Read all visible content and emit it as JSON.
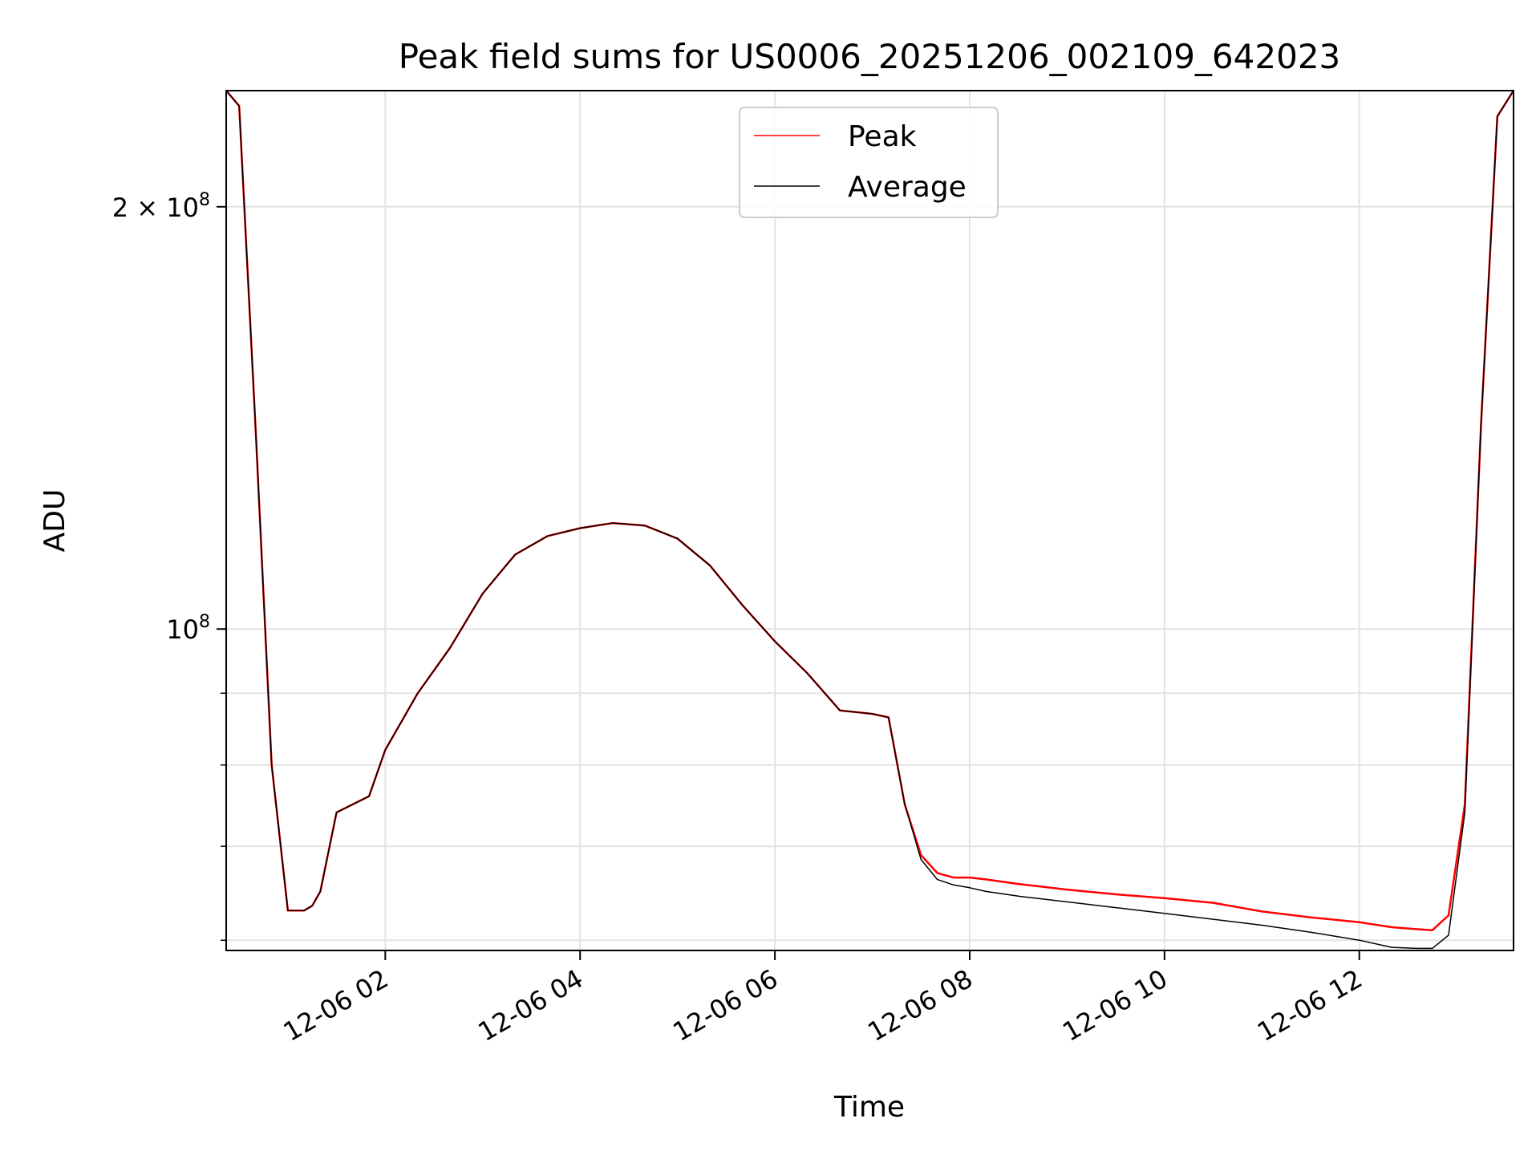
{
  "chart_data": {
    "type": "line",
    "title": "Peak field sums for US0006_20251206_002109_642023",
    "xlabel": "Time",
    "ylabel": "ADU",
    "y_scale": "log",
    "grid": true,
    "legend_placement": "upper-center",
    "xlim": [
      "2025-12-06 00:22",
      "2025-12-06 13:35"
    ],
    "ylim": [
      59000000,
      242000000
    ],
    "x_ticks": [
      "2025-12-06 02:00",
      "2025-12-06 04:00",
      "2025-12-06 06:00",
      "2025-12-06 08:00",
      "2025-12-06 10:00",
      "2025-12-06 12:00"
    ],
    "x_tick_labels": [
      "12-06 02",
      "12-06 04",
      "12-06 06",
      "12-06 08",
      "12-06 10",
      "12-06 12"
    ],
    "y_major_ticks": [
      100000000,
      200000000
    ],
    "y_major_tick_labels": [
      {
        "base": "10",
        "exp": "8"
      },
      {
        "mant": "2",
        "base": "10",
        "exp": "8"
      }
    ],
    "y_minor_ticks": [
      60000000,
      70000000,
      80000000,
      90000000
    ],
    "series": [
      {
        "name": "Peak",
        "color": "#ff0000",
        "x": [
          "2025-12-06 00:22",
          "2025-12-06 00:30",
          "2025-12-06 00:40",
          "2025-12-06 00:50",
          "2025-12-06 01:00",
          "2025-12-06 01:10",
          "2025-12-06 01:15",
          "2025-12-06 01:20",
          "2025-12-06 01:30",
          "2025-12-06 01:40",
          "2025-12-06 01:50",
          "2025-12-06 02:00",
          "2025-12-06 02:20",
          "2025-12-06 02:40",
          "2025-12-06 03:00",
          "2025-12-06 03:20",
          "2025-12-06 03:40",
          "2025-12-06 04:00",
          "2025-12-06 04:20",
          "2025-12-06 04:40",
          "2025-12-06 05:00",
          "2025-12-06 05:20",
          "2025-12-06 05:40",
          "2025-12-06 06:00",
          "2025-12-06 06:20",
          "2025-12-06 06:40",
          "2025-12-06 07:00",
          "2025-12-06 07:10",
          "2025-12-06 07:20",
          "2025-12-06 07:30",
          "2025-12-06 07:40",
          "2025-12-06 07:50",
          "2025-12-06 08:00",
          "2025-12-06 08:10",
          "2025-12-06 08:30",
          "2025-12-06 09:00",
          "2025-12-06 09:30",
          "2025-12-06 10:00",
          "2025-12-06 10:30",
          "2025-12-06 11:00",
          "2025-12-06 11:30",
          "2025-12-06 12:00",
          "2025-12-06 12:20",
          "2025-12-06 12:35",
          "2025-12-06 12:45",
          "2025-12-06 12:55",
          "2025-12-06 13:05",
          "2025-12-06 13:15",
          "2025-12-06 13:25",
          "2025-12-06 13:35"
        ],
        "y": [
          242000000,
          236000000,
          140000000,
          80000000,
          63000000,
          63000000,
          63500000,
          65000000,
          74000000,
          75000000,
          76000000,
          82000000,
          90000000,
          97000000,
          106000000,
          113000000,
          116500000,
          118000000,
          119000000,
          118500000,
          116000000,
          111000000,
          104000000,
          98000000,
          93000000,
          87500000,
          87000000,
          86500000,
          75000000,
          69000000,
          67000000,
          66500000,
          66500000,
          66300000,
          65800000,
          65200000,
          64700000,
          64300000,
          63800000,
          62900000,
          62300000,
          61800000,
          61300000,
          61100000,
          61000000,
          62500000,
          75000000,
          140000000,
          232000000,
          242000000
        ]
      },
      {
        "name": "Average",
        "color": "#000000",
        "x": [
          "2025-12-06 00:22",
          "2025-12-06 00:30",
          "2025-12-06 00:40",
          "2025-12-06 00:50",
          "2025-12-06 01:00",
          "2025-12-06 01:10",
          "2025-12-06 01:15",
          "2025-12-06 01:20",
          "2025-12-06 01:30",
          "2025-12-06 01:40",
          "2025-12-06 01:50",
          "2025-12-06 02:00",
          "2025-12-06 02:20",
          "2025-12-06 02:40",
          "2025-12-06 03:00",
          "2025-12-06 03:20",
          "2025-12-06 03:40",
          "2025-12-06 04:00",
          "2025-12-06 04:20",
          "2025-12-06 04:40",
          "2025-12-06 05:00",
          "2025-12-06 05:20",
          "2025-12-06 05:40",
          "2025-12-06 06:00",
          "2025-12-06 06:20",
          "2025-12-06 06:40",
          "2025-12-06 07:00",
          "2025-12-06 07:10",
          "2025-12-06 07:20",
          "2025-12-06 07:30",
          "2025-12-06 07:40",
          "2025-12-06 07:50",
          "2025-12-06 08:00",
          "2025-12-06 08:10",
          "2025-12-06 08:30",
          "2025-12-06 09:00",
          "2025-12-06 09:30",
          "2025-12-06 10:00",
          "2025-12-06 10:30",
          "2025-12-06 11:00",
          "2025-12-06 11:30",
          "2025-12-06 12:00",
          "2025-12-06 12:20",
          "2025-12-06 12:35",
          "2025-12-06 12:45",
          "2025-12-06 12:55",
          "2025-12-06 13:05",
          "2025-12-06 13:15",
          "2025-12-06 13:25",
          "2025-12-06 13:35"
        ],
        "y": [
          242000000,
          236000000,
          140000000,
          80000000,
          63000000,
          63000000,
          63500000,
          65000000,
          74000000,
          75000000,
          76000000,
          82000000,
          90000000,
          97000000,
          106000000,
          113000000,
          116500000,
          118000000,
          119000000,
          118500000,
          116000000,
          111000000,
          104000000,
          98000000,
          93000000,
          87500000,
          87000000,
          86500000,
          75000000,
          68500000,
          66300000,
          65700000,
          65400000,
          65000000,
          64500000,
          63900000,
          63300000,
          62700000,
          62100000,
          61500000,
          60800000,
          60000000,
          59300000,
          59200000,
          59200000,
          60500000,
          74000000,
          140000000,
          232000000,
          242000000
        ]
      }
    ]
  }
}
